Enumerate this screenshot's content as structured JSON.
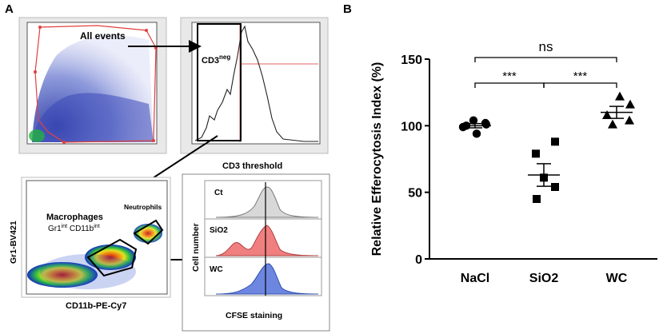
{
  "panels": {
    "a": "A",
    "b": "B"
  },
  "panel_a": {
    "all_events": "All events",
    "cd3_gate_main": "CD3",
    "cd3_gate_sup": "neg",
    "cd3_threshold": "CD3 threshold",
    "gr1_axis": "Gr1-BV421",
    "cd11b_axis": "CD11b-PE-Cy7",
    "neutrophils": "Neutrophils",
    "macrophages": "Macrophages",
    "gr1": "Gr1",
    "int1": "int",
    "cd11b": " CD11b",
    "int2": "int",
    "hist_labels": [
      "Ct",
      "SiO2",
      "WC"
    ],
    "cell_number": "Cell number",
    "cfse": "CFSE staining"
  },
  "chart_data": {
    "type": "scatter",
    "title": "",
    "xlabel": "",
    "ylabel": "Relative Efferocytosis Index (%)",
    "categories": [
      "NaCl",
      "SiO2",
      "WC"
    ],
    "ylim": [
      0,
      150
    ],
    "yticks": [
      0,
      50,
      100,
      150
    ],
    "series": [
      {
        "name": "NaCl",
        "marker": "circle",
        "points": [
          100,
          104,
          99,
          101,
          94,
          102
        ],
        "mean": 100,
        "sem": 1.6
      },
      {
        "name": "SiO2",
        "marker": "square",
        "points": [
          88,
          79,
          54,
          45,
          61
        ],
        "mean": 63,
        "sem": 8.5
      },
      {
        "name": "WC",
        "marker": "triangle",
        "points": [
          122,
          116,
          108,
          104,
          101
        ],
        "mean": 110,
        "sem": 4.5
      }
    ],
    "significance": [
      {
        "pair": [
          "NaCl",
          "SiO2"
        ],
        "label": "***"
      },
      {
        "pair": [
          "SiO2",
          "WC"
        ],
        "label": "***"
      },
      {
        "pair": [
          "NaCl",
          "WC"
        ],
        "label": "ns"
      }
    ]
  }
}
